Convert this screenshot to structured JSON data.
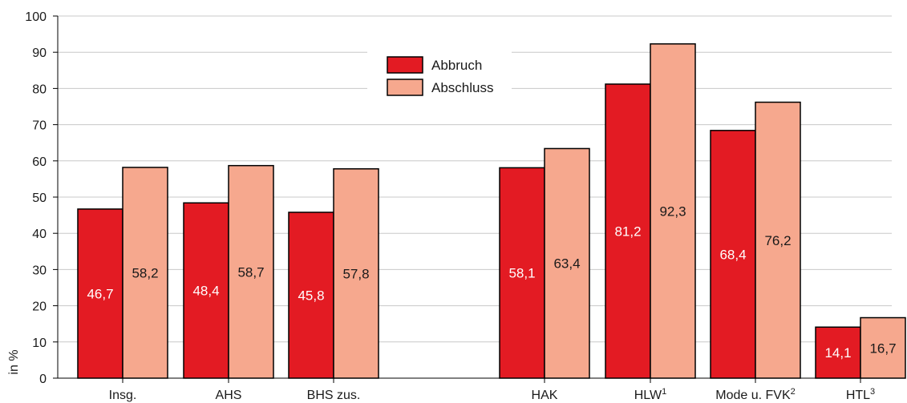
{
  "chart_data": {
    "type": "bar",
    "ylabel": "in %",
    "ylim": [
      0,
      100
    ],
    "yticks": [
      0,
      10,
      20,
      30,
      40,
      50,
      60,
      70,
      80,
      90,
      100
    ],
    "grid": true,
    "legend_position": "top-center",
    "categories": [
      {
        "label": "Insg.",
        "sup": ""
      },
      {
        "label": "AHS",
        "sup": ""
      },
      {
        "label": "BHS zus.",
        "sup": ""
      },
      {
        "label": "HAK",
        "sup": ""
      },
      {
        "label": "HLW",
        "sup": "1"
      },
      {
        "label": "Mode u. FVK",
        "sup": "2"
      },
      {
        "label": "HTL",
        "sup": "3"
      }
    ],
    "series": [
      {
        "name": "Abbruch",
        "color": "#e31b23",
        "label_color": "#ffffff",
        "values": [
          46.7,
          48.4,
          45.8,
          58.1,
          81.2,
          68.4,
          14.1
        ],
        "value_labels": [
          "46,7",
          "48,4",
          "45,8",
          "58,1",
          "81,2",
          "68,4",
          "14,1"
        ]
      },
      {
        "name": "Abschluss",
        "color": "#f6a88e",
        "label_color": "#1a1a1a",
        "values": [
          58.2,
          58.7,
          57.8,
          63.4,
          92.3,
          76.2,
          16.7
        ],
        "value_labels": [
          "58,2",
          "58,7",
          "57,8",
          "63,4",
          "92,3",
          "76,2",
          "16,7"
        ]
      }
    ]
  }
}
